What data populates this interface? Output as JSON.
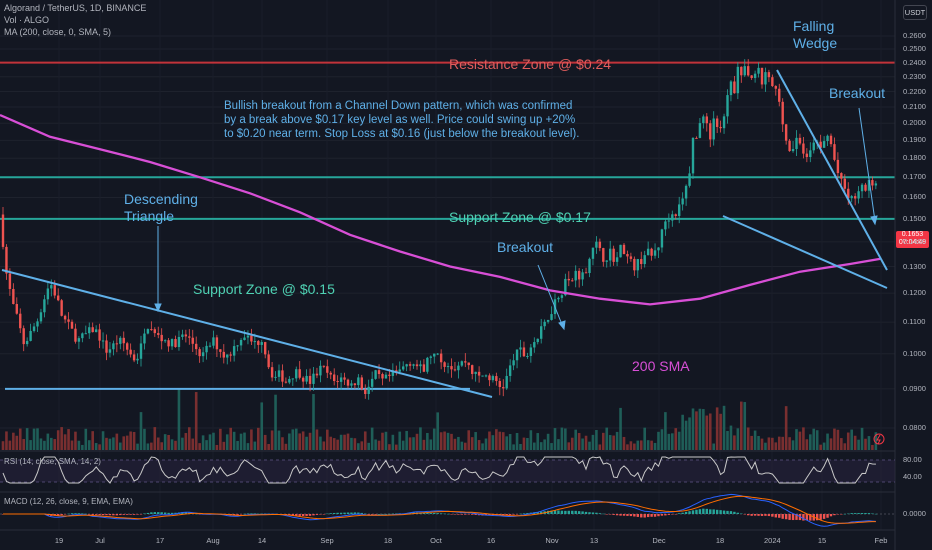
{
  "header": {
    "symbol_line": "Algorand / TetherUS, 1D, BINANCE",
    "volume_line": "Vol · ALGO",
    "ma_line": "MA (200, close, 0, SMA, 5)"
  },
  "currency_button": "USDT",
  "annotations": {
    "resistance": "Resistance Zone @ $0.24",
    "support_017": "Support Zone @ $0.17",
    "support_015": "Support Zone @ $0.15",
    "descending_1": "Descending",
    "descending_2": "Triangle",
    "falling_1": "Falling",
    "falling_2": "Wedge",
    "breakout_left": "Breakout",
    "breakout_right": "Breakout",
    "sma_label": "200 SMA",
    "idea_1": "Bullish breakout from a Channel Down pattern, which was confirmed",
    "idea_2": "by a break above $0.17 key level as well. Price could swing up +20%",
    "idea_3": "to $0.20 near term. Stop Loss at $0.16 (just below the breakout level)."
  },
  "last_price": {
    "line1": "0.1653",
    "line2": "07:04:49"
  },
  "rsi_label": "RSI (14, close, SMA, 14, 2)",
  "macd_label": "MACD (12, 26, close, 9, EMA, EMA)",
  "chart_data": {
    "type": "candlestick",
    "symbol": "ALGO/USDT",
    "timeframe": "1D",
    "exchange": "BINANCE",
    "y_ticks": [
      "0.2600",
      "0.2500",
      "0.2400",
      "0.2300",
      "0.2200",
      "0.2100",
      "0.2000",
      "0.1900",
      "0.1800",
      "0.1700",
      "0.1600",
      "0.1500",
      "0.1400",
      "0.1300",
      "0.1200",
      "0.1100",
      "0.1000",
      "0.0900",
      "0.0800"
    ],
    "y_scale": "log",
    "x_ticks": [
      "19",
      "Jul",
      "17",
      "Aug",
      "14",
      "Sep",
      "18",
      "Oct",
      "16",
      "Nov",
      "13",
      "Dec",
      "18",
      "2024",
      "15",
      "Feb"
    ],
    "rsi_ticks": [
      "80.00",
      "40.00"
    ],
    "macd_ticks": [
      "0.0000"
    ],
    "horizontal_levels": [
      {
        "name": "Resistance Zone",
        "value": 0.24,
        "color": "#c2333a"
      },
      {
        "name": "Support Zone",
        "value": 0.17,
        "color": "#26a69a"
      },
      {
        "name": "Support Zone",
        "value": 0.15,
        "color": "#26a69a"
      },
      {
        "name": "Triangle base",
        "value": 0.09,
        "color": "#5fb0e8"
      }
    ],
    "price_path": [
      [
        0,
        0.152
      ],
      [
        6,
        0.128
      ],
      [
        12,
        0.117
      ],
      [
        18,
        0.11
      ],
      [
        24,
        0.103
      ],
      [
        30,
        0.106
      ],
      [
        38,
        0.111
      ],
      [
        44,
        0.118
      ],
      [
        50,
        0.124
      ],
      [
        56,
        0.119
      ],
      [
        62,
        0.112
      ],
      [
        70,
        0.108
      ],
      [
        78,
        0.104
      ],
      [
        86,
        0.106
      ],
      [
        94,
        0.108
      ],
      [
        100,
        0.105
      ],
      [
        106,
        0.101
      ],
      [
        112,
        0.102
      ],
      [
        118,
        0.104
      ],
      [
        124,
        0.103
      ],
      [
        130,
        0.1
      ],
      [
        136,
        0.098
      ],
      [
        142,
        0.103
      ],
      [
        148,
        0.109
      ],
      [
        154,
        0.106
      ],
      [
        160,
        0.105
      ],
      [
        166,
        0.104
      ],
      [
        172,
        0.103
      ],
      [
        178,
        0.104
      ],
      [
        184,
        0.106
      ],
      [
        190,
        0.104
      ],
      [
        196,
        0.102
      ],
      [
        202,
        0.099
      ],
      [
        208,
        0.102
      ],
      [
        214,
        0.104
      ],
      [
        220,
        0.101
      ],
      [
        226,
        0.099
      ],
      [
        232,
        0.101
      ],
      [
        238,
        0.104
      ],
      [
        244,
        0.106
      ],
      [
        250,
        0.104
      ],
      [
        256,
        0.103
      ],
      [
        262,
        0.105
      ],
      [
        268,
        0.097
      ],
      [
        274,
        0.093
      ],
      [
        280,
        0.094
      ],
      [
        286,
        0.092
      ],
      [
        292,
        0.094
      ],
      [
        298,
        0.095
      ],
      [
        304,
        0.093
      ],
      [
        310,
        0.092
      ],
      [
        316,
        0.094
      ],
      [
        322,
        0.096
      ],
      [
        328,
        0.094
      ],
      [
        334,
        0.092
      ],
      [
        340,
        0.093
      ],
      [
        346,
        0.092
      ],
      [
        352,
        0.091
      ],
      [
        358,
        0.093
      ],
      [
        364,
        0.089
      ],
      [
        370,
        0.091
      ],
      [
        376,
        0.094
      ],
      [
        382,
        0.092
      ],
      [
        388,
        0.093
      ],
      [
        394,
        0.094
      ],
      [
        400,
        0.095
      ],
      [
        406,
        0.097
      ],
      [
        412,
        0.098
      ],
      [
        418,
        0.096
      ],
      [
        424,
        0.095
      ],
      [
        430,
        0.1
      ],
      [
        436,
        0.099
      ],
      [
        442,
        0.098
      ],
      [
        448,
        0.097
      ],
      [
        454,
        0.096
      ],
      [
        460,
        0.097
      ],
      [
        466,
        0.098
      ],
      [
        472,
        0.095
      ],
      [
        478,
        0.093
      ],
      [
        484,
        0.094
      ],
      [
        490,
        0.093
      ],
      [
        496,
        0.092
      ],
      [
        502,
        0.09
      ],
      [
        508,
        0.094
      ],
      [
        514,
        0.099
      ],
      [
        520,
        0.101
      ],
      [
        526,
        0.099
      ],
      [
        532,
        0.103
      ],
      [
        538,
        0.105
      ],
      [
        544,
        0.109
      ],
      [
        550,
        0.113
      ],
      [
        556,
        0.118
      ],
      [
        562,
        0.121
      ],
      [
        566,
        0.126
      ],
      [
        570,
        0.123
      ],
      [
        576,
        0.128
      ],
      [
        582,
        0.126
      ],
      [
        588,
        0.131
      ],
      [
        594,
        0.141
      ],
      [
        598,
        0.137
      ],
      [
        604,
        0.133
      ],
      [
        610,
        0.136
      ],
      [
        616,
        0.132
      ],
      [
        622,
        0.139
      ],
      [
        628,
        0.133
      ],
      [
        634,
        0.13
      ],
      [
        640,
        0.132
      ],
      [
        646,
        0.136
      ],
      [
        652,
        0.134
      ],
      [
        658,
        0.138
      ],
      [
        662,
        0.144
      ],
      [
        666,
        0.15
      ],
      [
        672,
        0.152
      ],
      [
        678,
        0.154
      ],
      [
        684,
        0.16
      ],
      [
        690,
        0.175
      ],
      [
        694,
        0.195
      ],
      [
        698,
        0.19
      ],
      [
        702,
        0.21
      ],
      [
        706,
        0.2
      ],
      [
        710,
        0.19
      ],
      [
        714,
        0.205
      ],
      [
        718,
        0.196
      ],
      [
        722,
        0.194
      ],
      [
        726,
        0.21
      ],
      [
        730,
        0.225
      ],
      [
        734,
        0.22
      ],
      [
        738,
        0.24
      ],
      [
        742,
        0.23
      ],
      [
        746,
        0.236
      ],
      [
        750,
        0.23
      ],
      [
        754,
        0.228
      ],
      [
        758,
        0.234
      ],
      [
        762,
        0.226
      ],
      [
        766,
        0.232
      ],
      [
        770,
        0.226
      ],
      [
        774,
        0.222
      ],
      [
        778,
        0.218
      ],
      [
        782,
        0.205
      ],
      [
        786,
        0.19
      ],
      [
        790,
        0.184
      ],
      [
        794,
        0.187
      ],
      [
        798,
        0.193
      ],
      [
        802,
        0.186
      ],
      [
        806,
        0.178
      ],
      [
        810,
        0.182
      ],
      [
        814,
        0.191
      ],
      [
        818,
        0.186
      ],
      [
        822,
        0.184
      ],
      [
        826,
        0.194
      ],
      [
        830,
        0.19
      ],
      [
        834,
        0.18
      ],
      [
        838,
        0.172
      ],
      [
        842,
        0.166
      ],
      [
        846,
        0.163
      ],
      [
        850,
        0.158
      ],
      [
        854,
        0.16
      ],
      [
        858,
        0.162
      ],
      [
        862,
        0.164
      ],
      [
        866,
        0.165
      ],
      [
        870,
        0.167
      ],
      [
        874,
        0.169
      ],
      [
        878,
        0.1653
      ]
    ],
    "ma_path": [
      [
        0,
        0.205
      ],
      [
        50,
        0.192
      ],
      [
        100,
        0.185
      ],
      [
        150,
        0.178
      ],
      [
        200,
        0.17
      ],
      [
        250,
        0.162
      ],
      [
        300,
        0.153
      ],
      [
        350,
        0.143
      ],
      [
        400,
        0.136
      ],
      [
        450,
        0.13
      ],
      [
        500,
        0.126
      ],
      [
        550,
        0.121
      ],
      [
        600,
        0.118
      ],
      [
        650,
        0.116
      ],
      [
        700,
        0.118
      ],
      [
        750,
        0.123
      ],
      [
        800,
        0.128
      ],
      [
        850,
        0.131
      ],
      [
        880,
        0.133
      ]
    ]
  }
}
